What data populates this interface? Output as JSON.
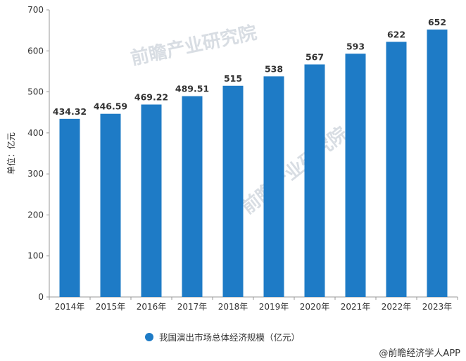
{
  "chart_data": {
    "type": "bar",
    "categories": [
      "2014年",
      "2015年",
      "2016年",
      "2017年",
      "2018年",
      "2019年",
      "2020年",
      "2021年",
      "2022年",
      "2023年"
    ],
    "values": [
      434.32,
      446.59,
      469.22,
      489.51,
      515,
      538,
      567,
      593,
      622,
      652
    ],
    "value_labels": [
      "434.32",
      "446.59",
      "469.22",
      "489.51",
      "515",
      "538",
      "567",
      "593",
      "622",
      "652"
    ],
    "ylabel": "单位：亿元",
    "ylim": [
      0,
      700
    ],
    "yticks": [
      0,
      100,
      200,
      300,
      400,
      500,
      600,
      700
    ],
    "legend": {
      "label": "我国演出市场总体经济规模（亿元）",
      "position": "bottom-center"
    },
    "bar_color": "#1e7bc6",
    "grid": false
  },
  "watermark": "前瞻产业研究院",
  "source": "@前瞻经济学人APP"
}
